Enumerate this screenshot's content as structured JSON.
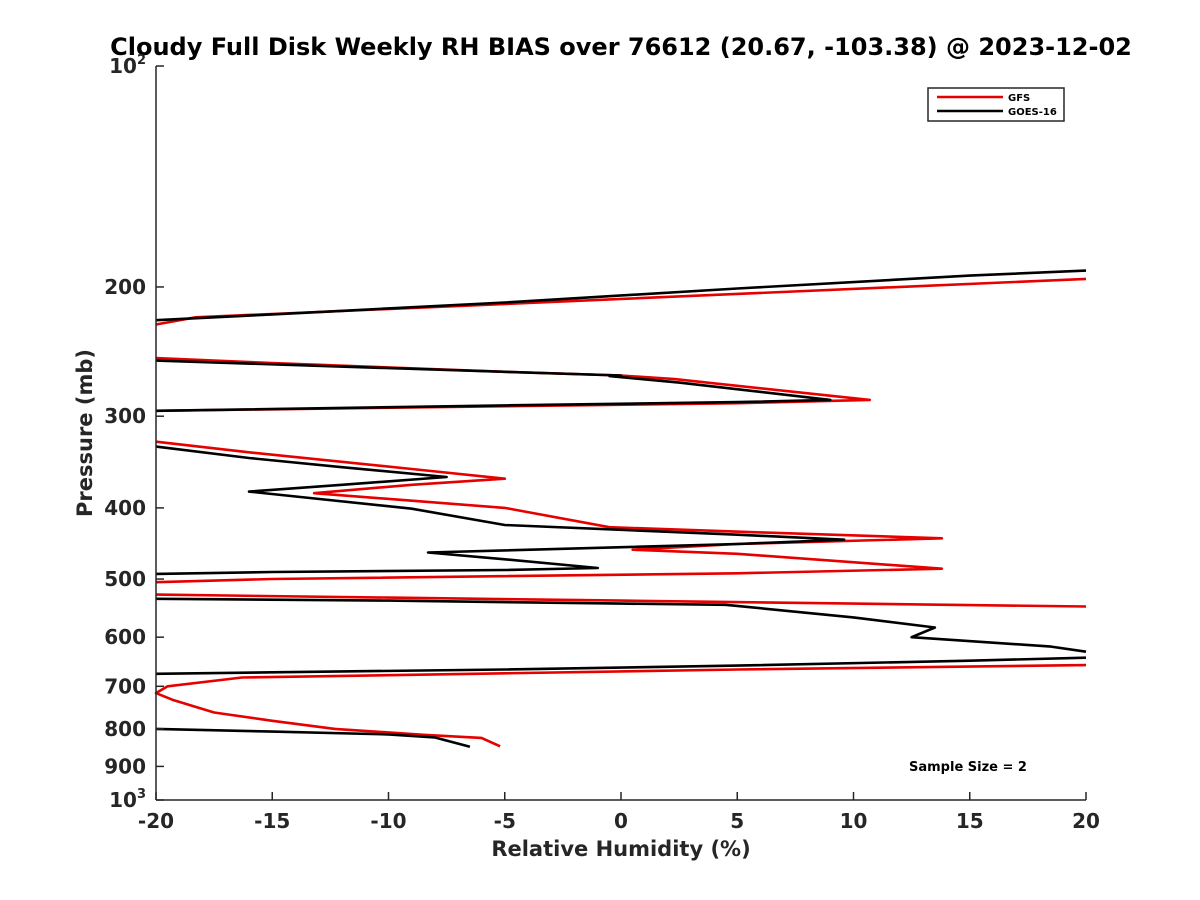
{
  "chart_data": {
    "type": "line",
    "title": "Cloudy Full Disk Weekly RH BIAS over 76612 (20.67, -103.38) @ 2023-12-02",
    "xlabel": "Relative Humidity (%)",
    "ylabel": "Pressure (mb)",
    "xlim": [
      -20,
      20
    ],
    "ylim": [
      100,
      1000
    ],
    "yscale": "log",
    "y_reversed": true,
    "x_ticks": [
      -20,
      -15,
      -10,
      -5,
      0,
      5,
      10,
      15,
      20
    ],
    "x_tick_labels": [
      "-20",
      "-15",
      "-10",
      "-5",
      "0",
      "5",
      "10",
      "15",
      "20"
    ],
    "y_ticks": [
      100,
      200,
      300,
      400,
      500,
      600,
      700,
      800,
      900,
      1000
    ],
    "y_tick_labels": [
      {
        "base": "10",
        "sup": "2"
      },
      {
        "base": "200"
      },
      {
        "base": "300"
      },
      {
        "base": "400"
      },
      {
        "base": "500"
      },
      {
        "base": "600"
      },
      {
        "base": "700"
      },
      {
        "base": "800"
      },
      {
        "base": "900"
      },
      {
        "base": "10",
        "sup": "3"
      }
    ],
    "legend_position": "top-right",
    "annotation": "Sample Size = 2",
    "series": [
      {
        "name": "GFS",
        "color": "#e60000",
        "segments": [
          [
            [
              20,
              195
            ],
            [
              -18.3,
              220
            ],
            [
              -20,
              225
            ]
          ],
          [
            [
              -20,
              250
            ],
            [
              -15,
              254
            ],
            [
              -5,
              261
            ],
            [
              0,
              264
            ],
            [
              2.3,
              267
            ],
            [
              10.7,
              285
            ],
            [
              5,
              288
            ],
            [
              -20,
              295
            ]
          ],
          [
            [
              -20,
              325
            ],
            [
              -16,
              336
            ],
            [
              -9,
              354
            ],
            [
              -5,
              365
            ],
            [
              -9,
              372
            ],
            [
              -13.2,
              382
            ],
            [
              -9,
              391
            ],
            [
              -5,
              400
            ],
            [
              -0.5,
              425
            ],
            [
              6,
              432
            ],
            [
              13.8,
              440
            ],
            [
              5,
              448
            ],
            [
              0.5,
              456
            ],
            [
              5,
              462
            ],
            [
              13.8,
              484
            ],
            [
              5,
              491
            ],
            [
              -15,
              500
            ],
            [
              -20,
              505
            ]
          ],
          [
            [
              -20,
              525
            ],
            [
              -10,
              530
            ],
            [
              0,
              535
            ],
            [
              10,
              540
            ],
            [
              20,
              545
            ]
          ],
          [
            [
              20,
              655
            ],
            [
              5,
              664
            ],
            [
              -5,
              672
            ],
            [
              -10,
              676
            ],
            [
              -16.3,
              681
            ],
            [
              -19.5,
              700
            ],
            [
              -20,
              715
            ],
            [
              -19.3,
              730
            ],
            [
              -17.5,
              760
            ],
            [
              -15,
              780
            ],
            [
              -12.3,
              800
            ],
            [
              -8.5,
              815
            ],
            [
              -6,
              823
            ],
            [
              -5.2,
              845
            ]
          ]
        ]
      },
      {
        "name": "GOES-16",
        "color": "#000000",
        "segments": [
          [
            [
              20,
              190
            ],
            [
              15,
              193
            ],
            [
              5,
              201
            ],
            [
              -5,
              210
            ],
            [
              -15,
              218
            ],
            [
              -20,
              222
            ]
          ],
          [
            [
              -20,
              252
            ],
            [
              -10,
              258
            ],
            [
              0,
              264
            ],
            [
              -0.5,
              264.5
            ],
            [
              2.5,
              270
            ],
            [
              9,
              285
            ],
            [
              5,
              287
            ],
            [
              -5,
              290
            ],
            [
              -20,
              295
            ]
          ],
          [
            [
              -20,
              330
            ],
            [
              -16,
              342
            ],
            [
              -12,
              352
            ],
            [
              -7.5,
              363
            ],
            [
              -12,
              372
            ],
            [
              -16,
              380
            ],
            [
              -9,
              401
            ],
            [
              -5,
              422
            ],
            [
              5,
              435
            ],
            [
              9.6,
              442
            ],
            [
              5,
              448
            ],
            [
              -8.3,
              460
            ],
            [
              -5,
              470
            ],
            [
              -1,
              483
            ],
            [
              -5,
              486
            ],
            [
              -15,
              489
            ],
            [
              -20,
              492
            ]
          ],
          [
            [
              -20,
              532
            ],
            [
              -10,
              535
            ],
            [
              0,
              540
            ],
            [
              4.5,
              542
            ],
            [
              10,
              564
            ],
            [
              13.5,
              582
            ],
            [
              12.5,
              600
            ],
            [
              18.5,
              618
            ],
            [
              20,
              628
            ]
          ],
          [
            [
              20,
              640
            ],
            [
              15,
              646
            ],
            [
              5,
              656
            ],
            [
              -5,
              664
            ],
            [
              -15,
              670
            ],
            [
              -20,
              673
            ]
          ],
          [
            [
              -20,
              800
            ],
            [
              -15,
              807
            ],
            [
              -10,
              814
            ],
            [
              -8,
              822
            ],
            [
              -6.5,
              846
            ]
          ]
        ]
      }
    ]
  }
}
